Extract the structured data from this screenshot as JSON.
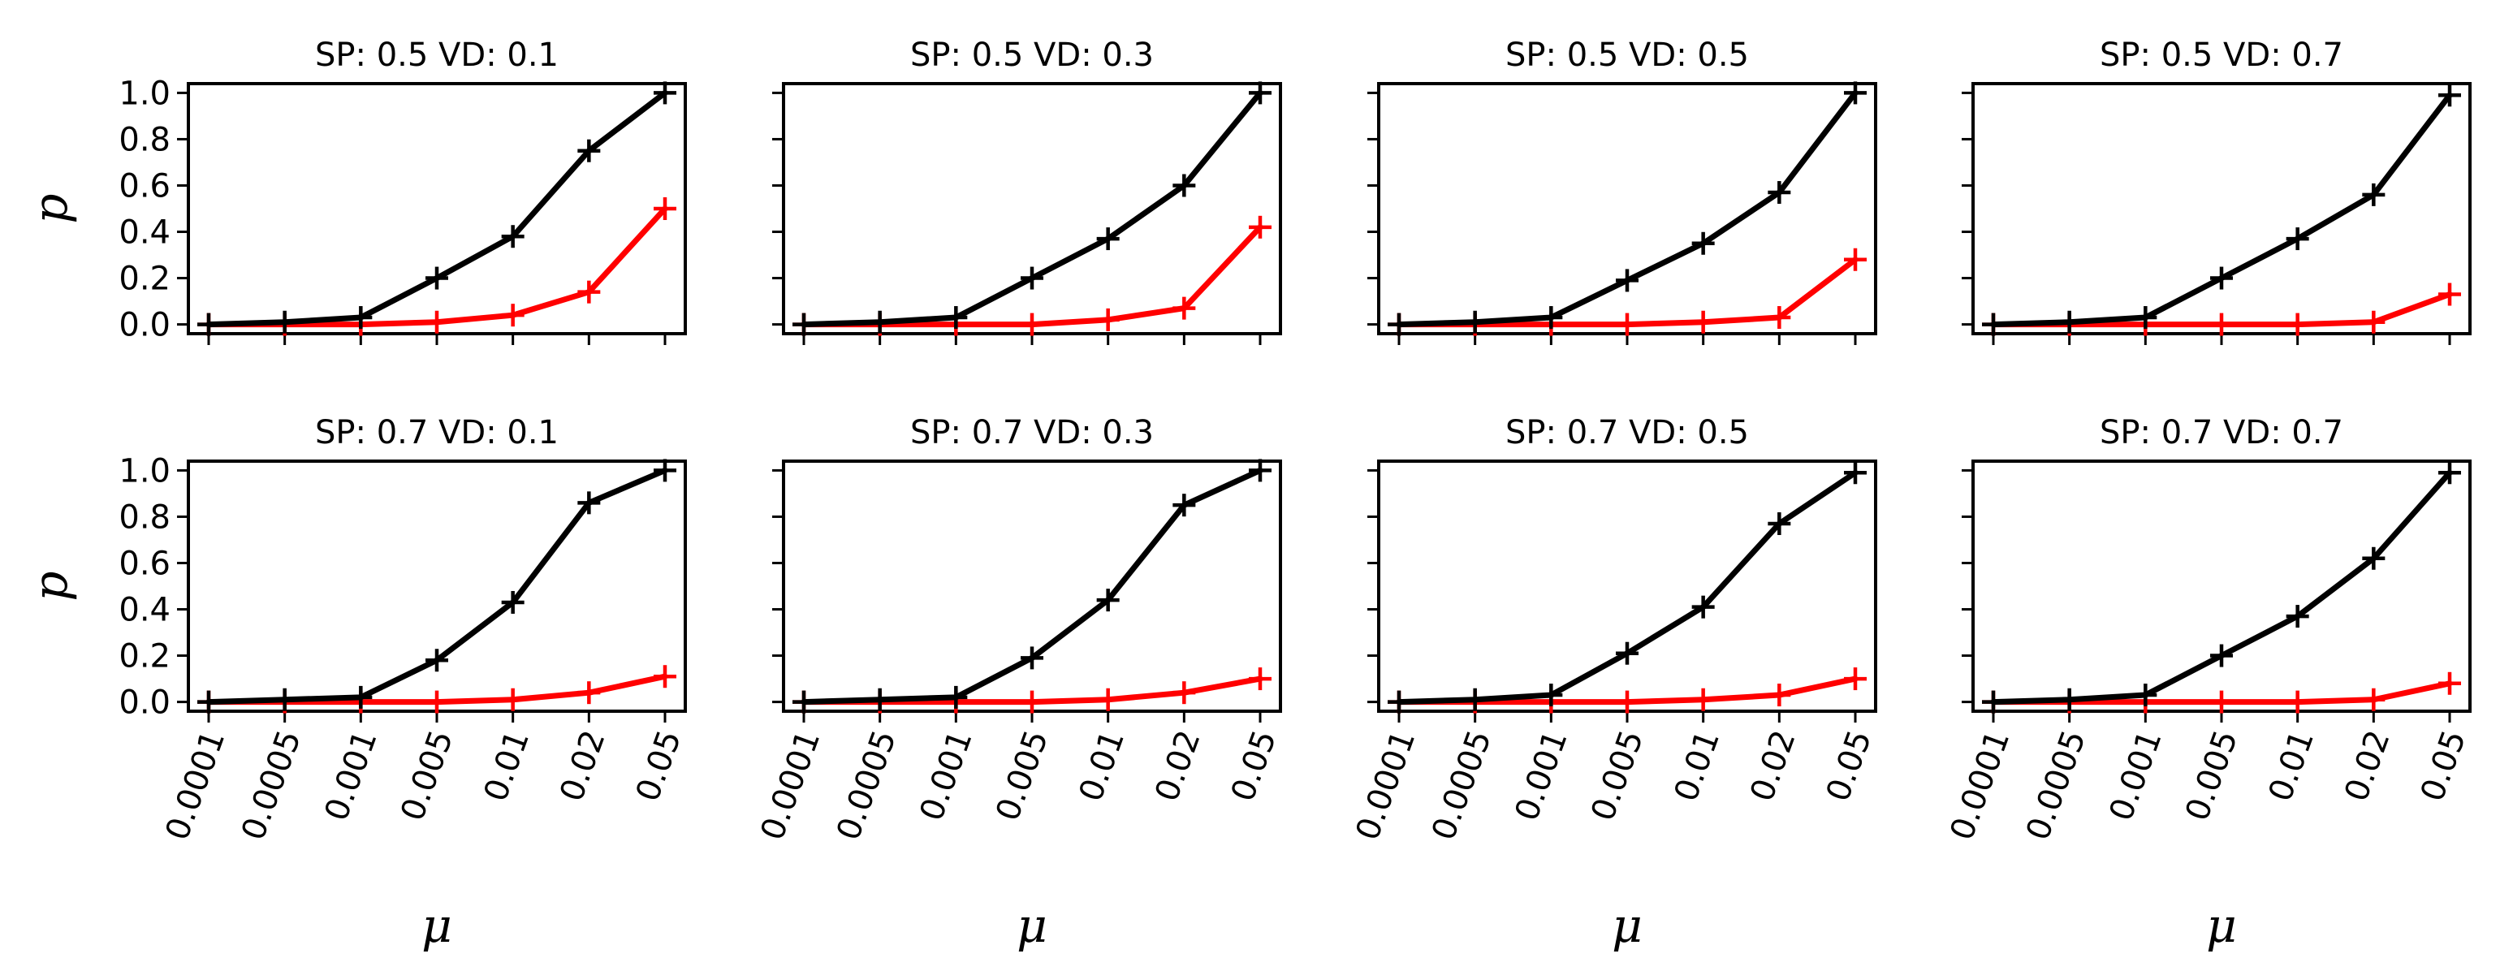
{
  "colors": {
    "black_series": "#000000",
    "red_series": "#ff0000"
  },
  "chart_data": [
    {
      "type": "line",
      "title": "SP: 0.5 VD: 0.1",
      "xlabel": "μ",
      "ylabel": "p",
      "categories": [
        "0.0001",
        "0.0005",
        "0.001",
        "0.005",
        "0.01",
        "0.02",
        "0.05"
      ],
      "yticks": [
        "0.0",
        "0.2",
        "0.4",
        "0.6",
        "0.8",
        "1.0"
      ],
      "ylim": [
        -0.04,
        1.04
      ],
      "series": [
        {
          "name": "black",
          "color": "#000000",
          "values": [
            0.0,
            0.01,
            0.03,
            0.2,
            0.38,
            0.75,
            1.0
          ]
        },
        {
          "name": "red",
          "color": "#ff0000",
          "values": [
            0.0,
            0.0,
            0.0,
            0.01,
            0.04,
            0.14,
            0.5
          ]
        }
      ]
    },
    {
      "type": "line",
      "title": "SP: 0.5 VD: 0.3",
      "xlabel": "μ",
      "ylabel": "p",
      "categories": [
        "0.0001",
        "0.0005",
        "0.001",
        "0.005",
        "0.01",
        "0.02",
        "0.05"
      ],
      "yticks": [
        "0.0",
        "0.2",
        "0.4",
        "0.6",
        "0.8",
        "1.0"
      ],
      "ylim": [
        -0.04,
        1.04
      ],
      "series": [
        {
          "name": "black",
          "color": "#000000",
          "values": [
            0.0,
            0.01,
            0.03,
            0.2,
            0.37,
            0.6,
            1.0
          ]
        },
        {
          "name": "red",
          "color": "#ff0000",
          "values": [
            0.0,
            0.0,
            0.0,
            0.0,
            0.02,
            0.07,
            0.42
          ]
        }
      ]
    },
    {
      "type": "line",
      "title": "SP: 0.5 VD: 0.5",
      "xlabel": "μ",
      "ylabel": "p",
      "categories": [
        "0.0001",
        "0.0005",
        "0.001",
        "0.005",
        "0.01",
        "0.02",
        "0.05"
      ],
      "yticks": [
        "0.0",
        "0.2",
        "0.4",
        "0.6",
        "0.8",
        "1.0"
      ],
      "ylim": [
        -0.04,
        1.04
      ],
      "series": [
        {
          "name": "black",
          "color": "#000000",
          "values": [
            0.0,
            0.01,
            0.03,
            0.19,
            0.35,
            0.57,
            1.0
          ]
        },
        {
          "name": "red",
          "color": "#ff0000",
          "values": [
            0.0,
            0.0,
            0.0,
            0.0,
            0.01,
            0.03,
            0.28
          ]
        }
      ]
    },
    {
      "type": "line",
      "title": "SP: 0.5 VD: 0.7",
      "xlabel": "μ",
      "ylabel": "p",
      "categories": [
        "0.0001",
        "0.0005",
        "0.001",
        "0.005",
        "0.01",
        "0.02",
        "0.05"
      ],
      "yticks": [
        "0.0",
        "0.2",
        "0.4",
        "0.6",
        "0.8",
        "1.0"
      ],
      "ylim": [
        -0.04,
        1.04
      ],
      "series": [
        {
          "name": "black",
          "color": "#000000",
          "values": [
            0.0,
            0.01,
            0.03,
            0.2,
            0.37,
            0.56,
            0.99
          ]
        },
        {
          "name": "red",
          "color": "#ff0000",
          "values": [
            0.0,
            0.0,
            0.0,
            0.0,
            0.0,
            0.01,
            0.13
          ]
        }
      ]
    },
    {
      "type": "line",
      "title": "SP: 0.7 VD: 0.1",
      "xlabel": "μ",
      "ylabel": "p",
      "categories": [
        "0.0001",
        "0.0005",
        "0.001",
        "0.005",
        "0.01",
        "0.02",
        "0.05"
      ],
      "yticks": [
        "0.0",
        "0.2",
        "0.4",
        "0.6",
        "0.8",
        "1.0"
      ],
      "ylim": [
        -0.04,
        1.04
      ],
      "series": [
        {
          "name": "black",
          "color": "#000000",
          "values": [
            0.0,
            0.01,
            0.02,
            0.18,
            0.43,
            0.86,
            1.0
          ]
        },
        {
          "name": "red",
          "color": "#ff0000",
          "values": [
            0.0,
            0.0,
            0.0,
            0.0,
            0.01,
            0.04,
            0.11
          ]
        }
      ]
    },
    {
      "type": "line",
      "title": "SP: 0.7 VD: 0.3",
      "xlabel": "μ",
      "ylabel": "p",
      "categories": [
        "0.0001",
        "0.0005",
        "0.001",
        "0.005",
        "0.01",
        "0.02",
        "0.05"
      ],
      "yticks": [
        "0.0",
        "0.2",
        "0.4",
        "0.6",
        "0.8",
        "1.0"
      ],
      "ylim": [
        -0.04,
        1.04
      ],
      "series": [
        {
          "name": "black",
          "color": "#000000",
          "values": [
            0.0,
            0.01,
            0.02,
            0.19,
            0.44,
            0.85,
            1.0
          ]
        },
        {
          "name": "red",
          "color": "#ff0000",
          "values": [
            0.0,
            0.0,
            0.0,
            0.0,
            0.01,
            0.04,
            0.1
          ]
        }
      ]
    },
    {
      "type": "line",
      "title": "SP: 0.7 VD: 0.5",
      "xlabel": "μ",
      "ylabel": "p",
      "categories": [
        "0.0001",
        "0.0005",
        "0.001",
        "0.005",
        "0.01",
        "0.02",
        "0.05"
      ],
      "yticks": [
        "0.0",
        "0.2",
        "0.4",
        "0.6",
        "0.8",
        "1.0"
      ],
      "ylim": [
        -0.04,
        1.04
      ],
      "series": [
        {
          "name": "black",
          "color": "#000000",
          "values": [
            0.0,
            0.01,
            0.03,
            0.21,
            0.41,
            0.77,
            0.99
          ]
        },
        {
          "name": "red",
          "color": "#ff0000",
          "values": [
            0.0,
            0.0,
            0.0,
            0.0,
            0.01,
            0.03,
            0.1
          ]
        }
      ]
    },
    {
      "type": "line",
      "title": "SP: 0.7 VD: 0.7",
      "xlabel": "μ",
      "ylabel": "p",
      "categories": [
        "0.0001",
        "0.0005",
        "0.001",
        "0.005",
        "0.01",
        "0.02",
        "0.05"
      ],
      "yticks": [
        "0.0",
        "0.2",
        "0.4",
        "0.6",
        "0.8",
        "1.0"
      ],
      "ylim": [
        -0.04,
        1.04
      ],
      "series": [
        {
          "name": "black",
          "color": "#000000",
          "values": [
            0.0,
            0.01,
            0.03,
            0.2,
            0.37,
            0.62,
            0.99
          ]
        },
        {
          "name": "red",
          "color": "#ff0000",
          "values": [
            0.0,
            0.0,
            0.0,
            0.0,
            0.0,
            0.01,
            0.08
          ]
        }
      ]
    }
  ]
}
